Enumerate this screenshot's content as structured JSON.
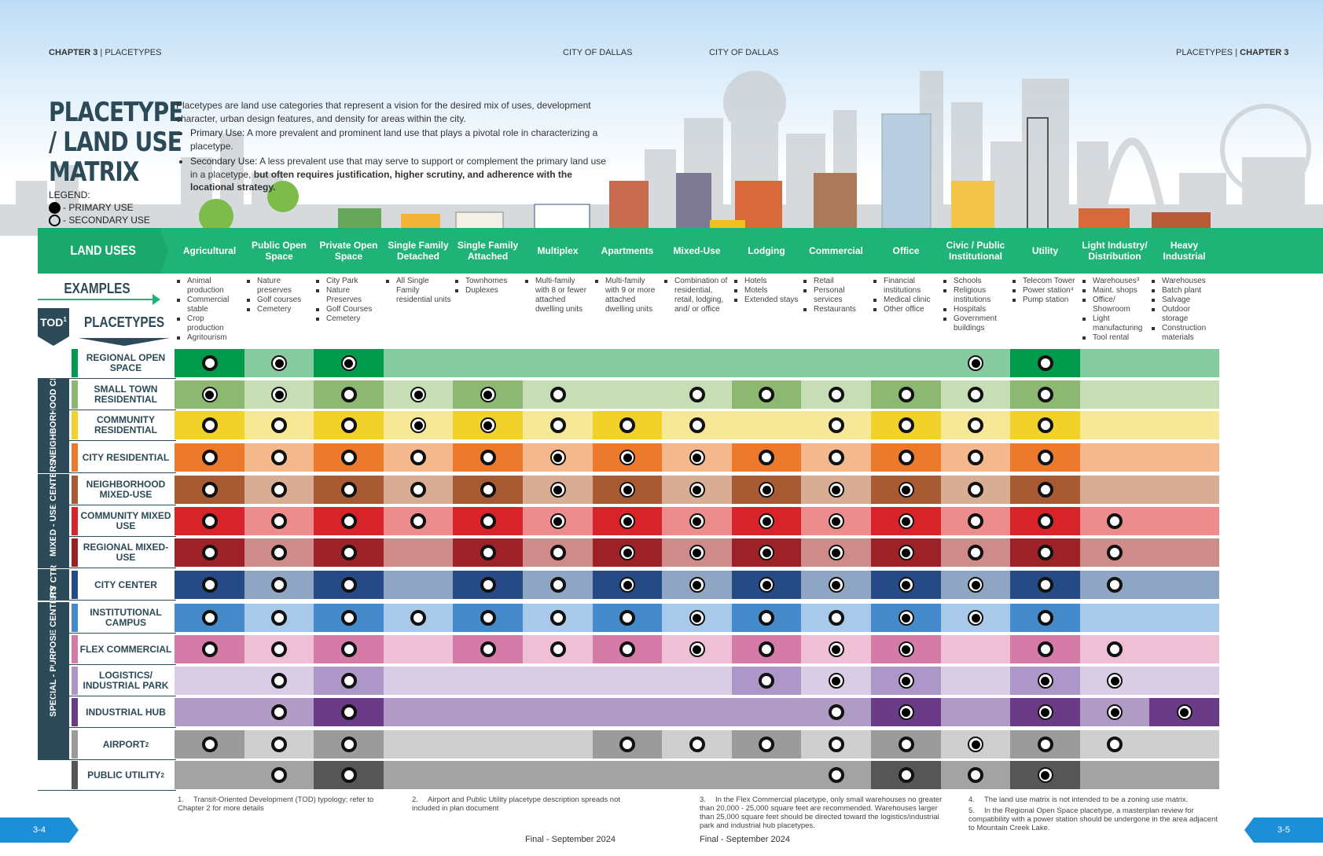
{
  "header": {
    "left_chapter": "CHAPTER 3",
    "left_section": "PLACETYPES",
    "center_left": "CITY OF DALLAS",
    "center_right": "CITY OF DALLAS",
    "right_section": "PLACETYPES",
    "right_chapter": "CHAPTER 3"
  },
  "title": {
    "line1": "PLACETYPE",
    "line2": "/ LAND USE",
    "line3": "MATRIX"
  },
  "legend": {
    "label": "LEGEND:",
    "primary": "- PRIMARY USE",
    "secondary": "- SECONDARY USE"
  },
  "intro": {
    "text": "Placetypes are land use categories that represent a vision for the desired mix of uses, development character, urban design features, and density for areas within the city.",
    "primary_term": "Primary Use:",
    "primary_text": "A more prevalent and prominent land use that plays a pivotal role in characterizing a placetype.",
    "secondary_term": "Secondary Use:",
    "secondary_text": "A less prevalent use that may serve to support or complement the primary land use in a placetype,",
    "secondary_emph": "but often requires justification, higher scrutiny, and adherence with the locational strategy."
  },
  "labels": {
    "land_uses": "LAND USES",
    "examples": "EXAMPLES",
    "tod": "TOD",
    "tod_sup": "1",
    "placetypes": "PLACETYPES"
  },
  "columns": [
    {
      "name": "Agricultural",
      "examples": [
        "Animal production",
        "Commercial stable",
        "Crop production",
        "Agritourism"
      ]
    },
    {
      "name": "Public Open Space",
      "examples": [
        "Nature preserves",
        "Golf courses",
        "Cemetery"
      ]
    },
    {
      "name": "Private Open Space",
      "examples": [
        "City Park",
        "Nature Preserves",
        "Golf Courses",
        "Cemetery"
      ]
    },
    {
      "name": "Single Family Detached",
      "examples": [
        "All Single Family residential units"
      ]
    },
    {
      "name": "Single Family Attached",
      "examples": [
        "Townhomes",
        "Duplexes"
      ]
    },
    {
      "name": "Multiplex",
      "examples": [
        "Multi-family with 8 or fewer attached dwelling units"
      ]
    },
    {
      "name": "Apartments",
      "examples": [
        "Multi-family with 9 or more attached dwelling units"
      ]
    },
    {
      "name": "Mixed-Use",
      "examples": [
        "Combination of residential, retail, lodging, and/ or office"
      ]
    },
    {
      "name": "Lodging",
      "examples": [
        "Hotels",
        "Motels",
        "Extended stays"
      ]
    },
    {
      "name": "Commercial",
      "examples": [
        "Retail",
        "Personal services",
        "Restaurants"
      ]
    },
    {
      "name": "Office",
      "examples": [
        "Financial institutions",
        "Medical clinic",
        "Other office"
      ]
    },
    {
      "name": "Civic / Public Institutional",
      "examples": [
        "Schools",
        "Religious institutions",
        "Hospitals",
        "Government buildings"
      ]
    },
    {
      "name": "Utility",
      "examples": [
        "Telecom Tower",
        "Power station⁴",
        "Pump station"
      ]
    },
    {
      "name": "Light Industry/ Distribution",
      "examples": [
        "Warehouses³",
        "Maint. shops",
        "Office/ Showroom",
        "Light manufacturing",
        "Tool rental"
      ]
    },
    {
      "name": "Heavy Industrial",
      "examples": [
        "Warehouses",
        "Batch plant",
        "Salvage",
        "Outdoor storage",
        "Construction materials"
      ]
    }
  ],
  "groups": [
    {
      "name": "NEIGHBORHOOD CENTERS"
    },
    {
      "name": "MIXED - USE CENTERS"
    },
    {
      "name": "CITY CTR"
    },
    {
      "name": "SPECIAL - PURPOSE CENTERS"
    }
  ],
  "rows": [
    {
      "name": "REGIONAL OPEN SPACE",
      "sup": "",
      "dark": "#009a4c",
      "light": "#86caa0",
      "cells": [
        "S",
        "P",
        "P",
        "",
        "",
        "",
        "",
        "",
        "",
        "",
        "",
        "P",
        "S",
        "",
        ""
      ]
    },
    {
      "name": "SMALL TOWN RESIDENTIAL",
      "sup": "",
      "dark": "#8db872",
      "light": "#c7ddb5",
      "cells": [
        "P",
        "P",
        "S",
        "P",
        "P",
        "S",
        "",
        "S",
        "S",
        "S",
        "S",
        "S",
        "S",
        "",
        ""
      ]
    },
    {
      "name": "COMMUNITY RESIDENTIAL",
      "sup": "",
      "dark": "#f0d22a",
      "light": "#f7e898",
      "cells": [
        "S",
        "S",
        "S",
        "P",
        "P",
        "S",
        "S",
        "S",
        "",
        "S",
        "S",
        "S",
        "S",
        "",
        ""
      ]
    },
    {
      "name": "CITY RESIDENTIAL",
      "sup": "",
      "dark": "#ec7a2c",
      "light": "#f5b78c",
      "cells": [
        "S",
        "S",
        "S",
        "S",
        "S",
        "P",
        "P",
        "P",
        "S",
        "S",
        "S",
        "S",
        "S",
        "",
        ""
      ]
    },
    {
      "name": "NEIGHBORHOOD MIXED-USE",
      "sup": "",
      "dark": "#a85a33",
      "light": "#d8ad94",
      "cells": [
        "S",
        "S",
        "S",
        "S",
        "S",
        "P",
        "P",
        "P",
        "P",
        "P",
        "P",
        "S",
        "S",
        "",
        ""
      ]
    },
    {
      "name": "COMMUNITY MIXED USE",
      "sup": "",
      "dark": "#d8232a",
      "light": "#ec8c8c",
      "cells": [
        "S",
        "S",
        "S",
        "S",
        "S",
        "P",
        "P",
        "P",
        "P",
        "P",
        "P",
        "S",
        "S",
        "S",
        ""
      ]
    },
    {
      "name": "REGIONAL MIXED-USE",
      "sup": "",
      "dark": "#9c2228",
      "light": "#cf8a8a",
      "cells": [
        "S",
        "S",
        "S",
        "",
        "S",
        "S",
        "P",
        "P",
        "P",
        "P",
        "P",
        "S",
        "S",
        "S",
        ""
      ]
    },
    {
      "name": "CITY CENTER",
      "sup": "",
      "dark": "#254a86",
      "light": "#8fa5c4",
      "cells": [
        "S",
        "S",
        "S",
        "",
        "S",
        "S",
        "P",
        "P",
        "P",
        "P",
        "P",
        "P",
        "S",
        "S",
        ""
      ]
    },
    {
      "name": "INSTITUTIONAL CAMPUS",
      "sup": "",
      "dark": "#458acb",
      "light": "#a8c9ea",
      "cells": [
        "S",
        "S",
        "S",
        "S",
        "S",
        "S",
        "S",
        "P",
        "S",
        "S",
        "P",
        "P",
        "S",
        "",
        ""
      ]
    },
    {
      "name": "FLEX COMMERCIAL",
      "sup": "",
      "dark": "#d47ca7",
      "light": "#eebfd5",
      "cells": [
        "S",
        "S",
        "S",
        "",
        "S",
        "S",
        "S",
        "P",
        "S",
        "P",
        "P",
        "",
        "S",
        "S",
        ""
      ]
    },
    {
      "name": "LOGISTICS/ INDUSTRIAL PARK",
      "sup": "",
      "dark": "#ad97c8",
      "light": "#d9cde6",
      "cells": [
        "",
        "S",
        "S",
        "",
        "",
        "",
        "",
        "",
        "S",
        "P",
        "P",
        "",
        "P",
        "P",
        ""
      ]
    },
    {
      "name": "INDUSTRIAL HUB",
      "sup": "",
      "dark": "#6a3b86",
      "light": "#b09bc4",
      "cells": [
        "",
        "S",
        "S",
        "",
        "",
        "",
        "",
        "",
        "",
        "S",
        "P",
        "",
        "P",
        "P",
        "P"
      ]
    },
    {
      "name": "AIRPORT",
      "sup": "2",
      "dark": "#9b9b9b",
      "light": "#cfcfcf",
      "cells": [
        "S",
        "S",
        "S",
        "",
        "",
        "",
        "S",
        "S",
        "S",
        "S",
        "S",
        "P",
        "S",
        "S",
        ""
      ]
    },
    {
      "name": "PUBLIC UTILITY",
      "sup": "2",
      "dark": "#565656",
      "light": "#a3a3a3",
      "cells": [
        "",
        "S",
        "S",
        "",
        "",
        "",
        "",
        "",
        "",
        "S",
        "S",
        "S",
        "P",
        "",
        ""
      ]
    }
  ],
  "footnotes": [
    {
      "n": "1.",
      "text": "Transit-Oriented Development (TOD) typology; refer to Chapter 2 for more details"
    },
    {
      "n": "2.",
      "text": "Airport and Public Utility placetype description spreads not included in plan document"
    },
    {
      "n": "3.",
      "text": "In the Flex Commercial placetype, only small warehouses no greater than 20,000 - 25,000 square feet are recommended. Warehouses larger than 25,000 square feet should be directed toward the logistics/industrial park and industrial hub placetypes."
    },
    {
      "n": "4.",
      "text": "The land use matrix is not intended to be a zoning use matrix."
    },
    {
      "n": "5.",
      "text": "In the Regional Open Space placetype, a masterplan review for compatibility with a power station should be undergone in the area adjacent to Mountain Creek Lake."
    }
  ],
  "footer": {
    "left": "Final - September 2024",
    "right": "Final - September 2024",
    "page_left": "3-4",
    "page_right": "3-5"
  }
}
